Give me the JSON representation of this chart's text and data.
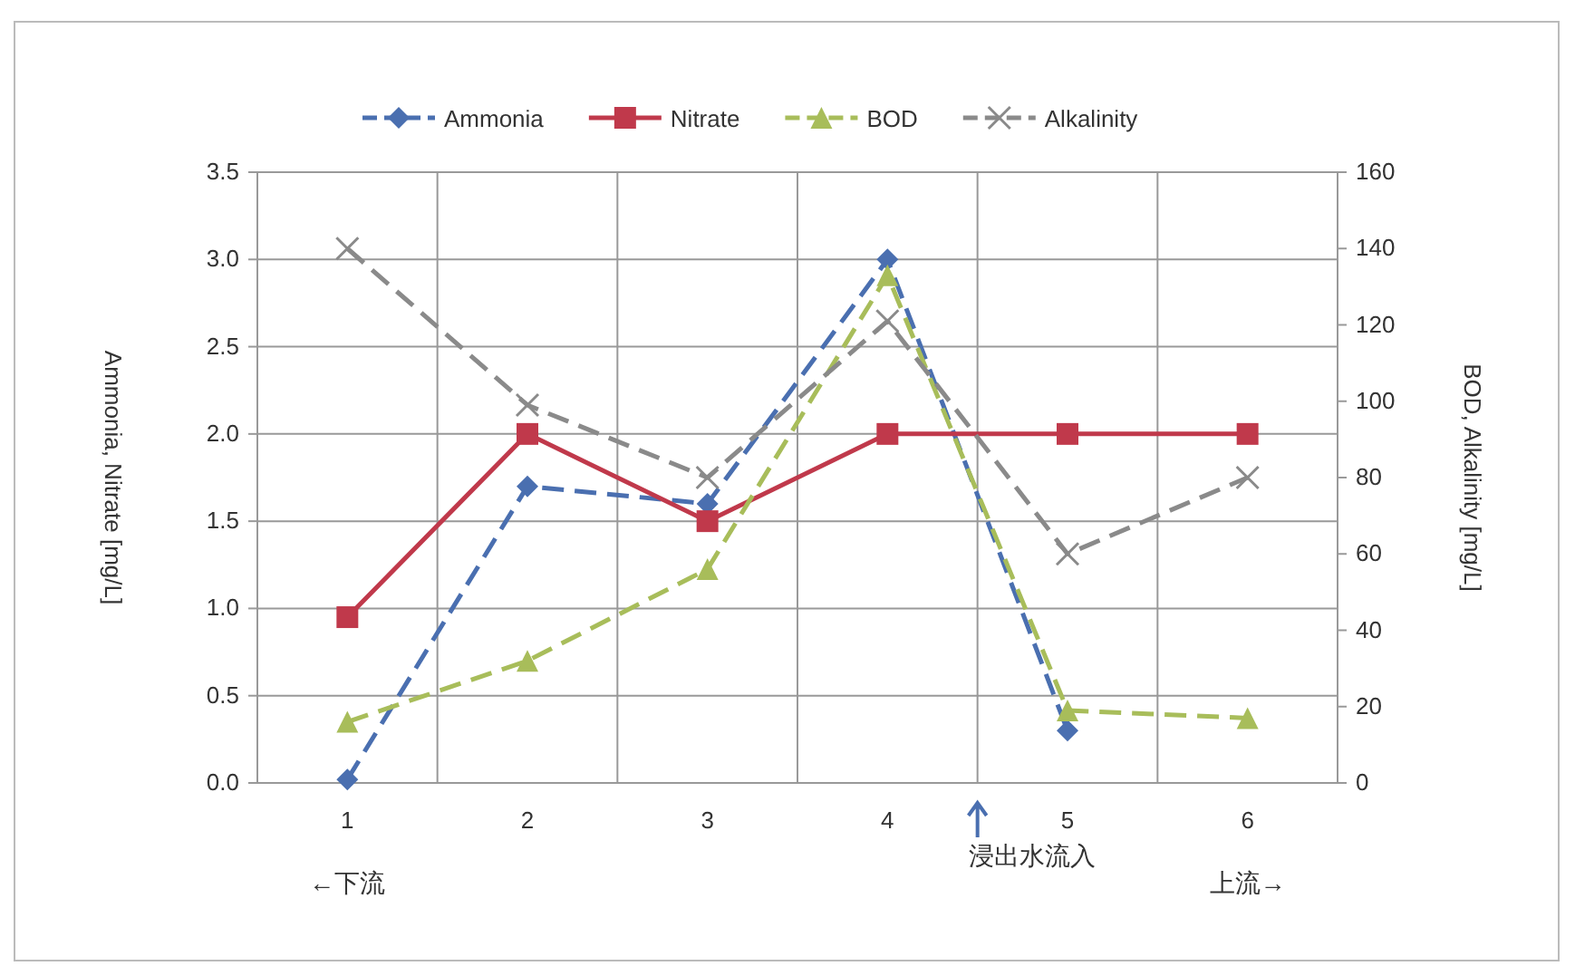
{
  "chart_data": {
    "type": "line",
    "categories": [
      "1",
      "2",
      "3",
      "4",
      "5",
      "6"
    ],
    "ylabel": "Ammonia, Nitrate [mg/L]",
    "y2label": "BOD, Alkalinity [mg/L]",
    "ylim": [
      0,
      3.5
    ],
    "yticks": [
      {
        "value": 0,
        "label": "0.0"
      },
      0.5,
      {
        "value": 1,
        "label": "1.0"
      },
      1.5,
      {
        "value": 2,
        "label": "2.0"
      },
      2.5,
      {
        "value": 3,
        "label": "3.0"
      },
      3.5
    ],
    "y2lim": [
      0,
      160
    ],
    "y2ticks": [
      0,
      20,
      40,
      60,
      80,
      100,
      120,
      140,
      160
    ],
    "grid": true,
    "legend": "top",
    "series": [
      {
        "name": "Ammonia",
        "color": "#4a6fb0",
        "marker": "diamond",
        "line_style": "dashed",
        "values": [
          0.02,
          1.7,
          1.6,
          3.0,
          0.3,
          null
        ]
      },
      {
        "name": "Nitrate",
        "color": "#c0394b",
        "marker": "square",
        "line_style": "solid",
        "values": [
          0.95,
          2.0,
          1.5,
          2.0,
          2.0,
          2.0
        ]
      },
      {
        "name": "BOD",
        "color": "#a8bd5a",
        "marker": "triangle",
        "line_style": "dashed",
        "axis": "y2",
        "values": [
          16,
          32,
          56,
          133,
          19,
          17
        ]
      },
      {
        "name": "Alkalinity",
        "color": "#8a8a8a",
        "marker": "cross",
        "line_style": "dashed",
        "axis": "y2",
        "values": [
          140,
          99,
          80,
          121,
          60,
          80
        ]
      }
    ],
    "annotations": [
      "←下流",
      "浸出水流入",
      "上流→"
    ]
  }
}
